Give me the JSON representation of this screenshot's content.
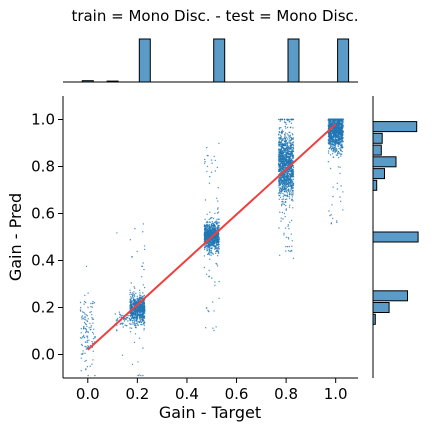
{
  "chart_data": {
    "type": "scatter",
    "title": "train = Mono Disc. - test = Mono Disc.",
    "xlabel": "Gain - Target",
    "ylabel": "Gain - Pred",
    "xlim": [
      -0.1,
      1.09
    ],
    "ylim": [
      -0.1,
      1.1
    ],
    "xticks": [
      0.0,
      0.2,
      0.4,
      0.6,
      0.8,
      1.0
    ],
    "yticks": [
      0.0,
      0.2,
      0.4,
      0.6,
      0.8,
      1.0
    ],
    "xtick_labels": [
      "0.0",
      "0.2",
      "0.4",
      "0.6",
      "0.8",
      "1.0"
    ],
    "ytick_labels": [
      "0.0",
      "0.2",
      "0.4",
      "0.6",
      "0.8",
      "1.0"
    ],
    "grid": false,
    "colors": {
      "points": "#1f77b4",
      "fit_line": "#ef4040",
      "hist_fill": "#5a9bc8",
      "hist_edge": "#000000"
    },
    "scatter_clusters": [
      {
        "x_target": 0.0,
        "pred_center": 0.1,
        "pred_spread": 0.08,
        "count": 120
      },
      {
        "x_target": 0.14,
        "pred_center": 0.15,
        "pred_spread": 0.02,
        "count": 60
      },
      {
        "x_target": 0.2,
        "pred_center": 0.19,
        "pred_spread": 0.03,
        "count": 700
      },
      {
        "x_target": 0.5,
        "pred_center": 0.5,
        "pred_spread": 0.03,
        "count": 900
      },
      {
        "x_target": 0.8,
        "pred_center": 0.8,
        "pred_spread": 0.07,
        "count": 1300
      },
      {
        "x_target": 1.0,
        "pred_center": 0.95,
        "pred_spread": 0.04,
        "count": 1100
      }
    ],
    "fit_line": {
      "x": [
        0.0,
        1.0
      ],
      "y": [
        0.02,
        0.98
      ]
    },
    "marginal_x_hist": {
      "bins": [
        0.0,
        0.1,
        0.2,
        0.5,
        0.8,
        1.0
      ],
      "relative_heights": [
        0.03,
        0.02,
        1.0,
        1.0,
        1.0,
        1.0
      ]
    },
    "marginal_y_hist": {
      "bin_centers": [
        0.97,
        0.92,
        0.87,
        0.82,
        0.77,
        0.72,
        0.5,
        0.25,
        0.2,
        0.15
      ],
      "relative_counts": [
        0.95,
        0.2,
        0.18,
        0.5,
        0.25,
        0.08,
        0.98,
        0.75,
        0.35,
        0.05
      ]
    }
  }
}
